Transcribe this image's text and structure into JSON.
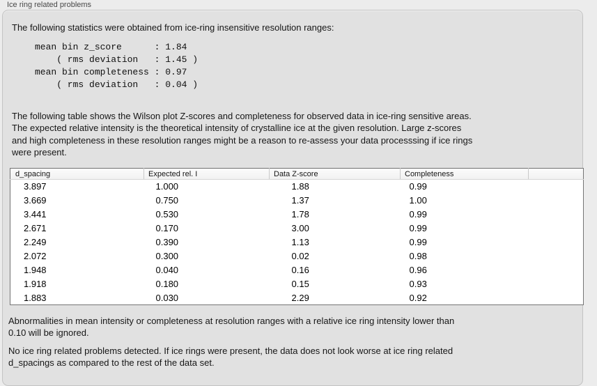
{
  "window": {
    "title": "Ice ring related problems"
  },
  "panel": {
    "intro_text": "The following statistics were obtained from ice-ring insensitive resolution ranges:",
    "stats_block": "mean bin z_score      : 1.84\n    ( rms deviation   : 1.45 )\nmean bin completeness : 0.97\n    ( rms deviation   : 0.04 )",
    "stats": {
      "mean_bin_z_score": "1.84",
      "z_score_rms_deviation": "1.45",
      "mean_bin_completeness": "0.97",
      "completeness_rms_deviation": "0.04"
    },
    "table_description": "The following table shows the Wilson plot Z-scores and completeness for observed data in ice-ring sensitive areas.\nThe expected relative intensity is the theoretical intensity of crystalline ice at the given resolution. Large z-scores\nand high completeness in these resolution ranges might be a reason to re-assess your data processsing if ice rings\nwere present.",
    "ignore_note": "Abnormalities in mean intensity or completeness at resolution ranges with a relative ice ring intensity lower than\n0.10 will be ignored.",
    "conclusion": "No ice ring related problems detected. If ice rings were present, the data does not look worse at ice ring related\nd_spacings as compared to the rest of the data set."
  },
  "table": {
    "columns": [
      "d_spacing",
      "Expected rel. I",
      "Data Z-score",
      "Completeness"
    ],
    "rows": [
      [
        "3.897",
        "1.000",
        "1.88",
        "0.99"
      ],
      [
        "3.669",
        "0.750",
        "1.37",
        "1.00"
      ],
      [
        "3.441",
        "0.530",
        "1.78",
        "0.99"
      ],
      [
        "2.671",
        "0.170",
        "3.00",
        "0.99"
      ],
      [
        "2.249",
        "0.390",
        "1.13",
        "0.99"
      ],
      [
        "2.072",
        "0.300",
        "0.02",
        "0.98"
      ],
      [
        "1.948",
        "0.040",
        "0.16",
        "0.96"
      ],
      [
        "1.918",
        "0.180",
        "0.15",
        "0.93"
      ],
      [
        "1.883",
        "0.030",
        "2.29",
        "0.92"
      ]
    ]
  },
  "colors": {
    "page_bg": "#ececec",
    "panel_bg": "#e1e1e1",
    "panel_border": "#c3c3c3",
    "table_border": "#747474",
    "header_separator": "#c9c9c9",
    "text": "#161616",
    "title_text": "#474747"
  }
}
